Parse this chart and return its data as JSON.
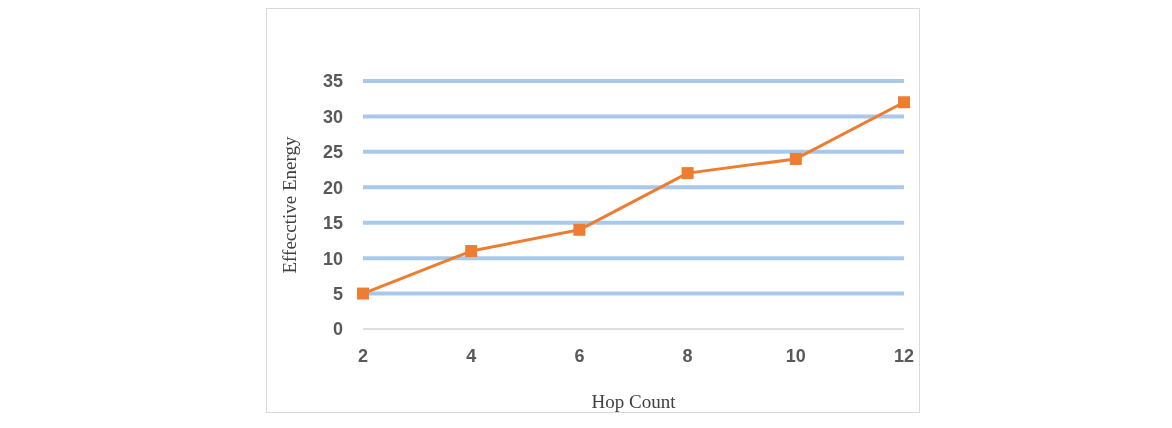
{
  "chart_data": {
    "type": "line",
    "xlabel": "Hop Count",
    "ylabel": "Effecctive Energy",
    "categories": [
      "2",
      "4",
      "6",
      "8",
      "10",
      "12"
    ],
    "series": [
      {
        "color": "#ed7d31",
        "values": [
          5,
          11,
          14,
          22,
          24,
          32
        ]
      }
    ],
    "ylim": [
      0,
      35
    ],
    "yticks": [
      0,
      5,
      10,
      15,
      20,
      25,
      30,
      35
    ],
    "grid": "y",
    "marker": "square",
    "line_style": "solid",
    "legend": false
  }
}
